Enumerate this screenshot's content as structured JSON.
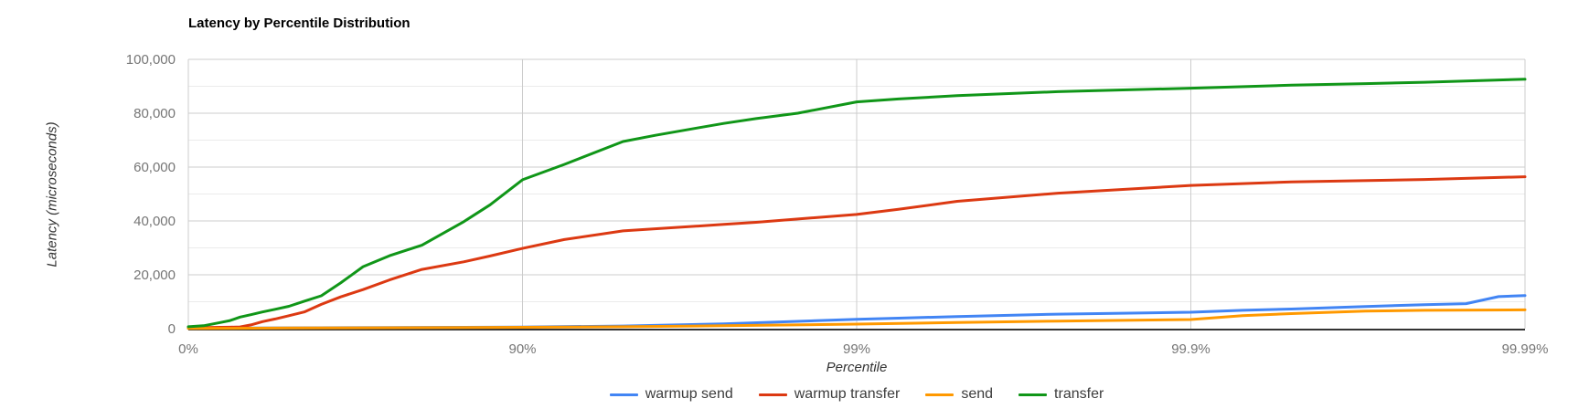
{
  "chart_data": {
    "type": "line",
    "title": "Latency by Percentile Distribution",
    "xlabel": "Percentile",
    "ylabel": "Latency (microseconds)",
    "x_scale": "logarithmic-percentile (equal spacing per decade of 1/(1-p))",
    "x_ticks": [
      {
        "decade": 0,
        "label": "0%"
      },
      {
        "decade": 1,
        "label": "90%"
      },
      {
        "decade": 2,
        "label": "99%"
      },
      {
        "decade": 3,
        "label": "99.9%"
      },
      {
        "decade": 4,
        "label": "99.99%"
      }
    ],
    "y_ticks": [
      {
        "value": 0,
        "label": "0"
      },
      {
        "value": 20000,
        "label": "20,000"
      },
      {
        "value": 40000,
        "label": "40,000"
      },
      {
        "value": 60000,
        "label": "60,000"
      },
      {
        "value": 80000,
        "label": "80,000"
      },
      {
        "value": 100000,
        "label": "100,000"
      }
    ],
    "ylim": [
      0,
      100000
    ],
    "grid": true,
    "minor_gridlines_every": 10000,
    "legend_position": "bottom",
    "colors": {
      "major_grid": "#cccccc",
      "minor_grid": "#ebebeb",
      "baseline": "#333333",
      "tick_text": "#757575"
    },
    "series": [
      {
        "name": "warmup send",
        "color": "#4285f4",
        "points": [
          [
            0,
            150
          ],
          [
            25,
            200
          ],
          [
            50,
            300
          ],
          [
            75,
            400
          ],
          [
            90,
            600
          ],
          [
            95,
            1000
          ],
          [
            97.5,
            1800
          ],
          [
            99,
            3500
          ],
          [
            99.25,
            3900
          ],
          [
            99.5,
            4500
          ],
          [
            99.75,
            5400
          ],
          [
            99.9,
            6100
          ],
          [
            99.93,
            6800
          ],
          [
            99.95,
            7300
          ],
          [
            99.97,
            8200
          ],
          [
            99.98,
            8900
          ],
          [
            99.985,
            9300
          ],
          [
            99.988,
            11900
          ],
          [
            99.99,
            12300
          ]
        ]
      },
      {
        "name": "warmup transfer",
        "color": "#dc3912",
        "points": [
          [
            0,
            400
          ],
          [
            10,
            450
          ],
          [
            20,
            500
          ],
          [
            25,
            550
          ],
          [
            30,
            650
          ],
          [
            35,
            1400
          ],
          [
            40,
            2600
          ],
          [
            45,
            3600
          ],
          [
            50,
            4800
          ],
          [
            55,
            6200
          ],
          [
            60,
            9000
          ],
          [
            65,
            11800
          ],
          [
            70,
            14500
          ],
          [
            75,
            18100
          ],
          [
            80,
            22000
          ],
          [
            85,
            24800
          ],
          [
            87.5,
            27000
          ],
          [
            90,
            29800
          ],
          [
            92.5,
            33100
          ],
          [
            95,
            36300
          ],
          [
            97.5,
            38700
          ],
          [
            98,
            39500
          ],
          [
            98.5,
            40700
          ],
          [
            99,
            42400
          ],
          [
            99.25,
            44300
          ],
          [
            99.5,
            47300
          ],
          [
            99.75,
            50300
          ],
          [
            99.9,
            53200
          ],
          [
            99.95,
            54500
          ],
          [
            99.98,
            55400
          ],
          [
            99.99,
            56400
          ]
        ]
      },
      {
        "name": "send",
        "color": "#ff9900",
        "points": [
          [
            0,
            100
          ],
          [
            25,
            150
          ],
          [
            50,
            250
          ],
          [
            75,
            350
          ],
          [
            90,
            500
          ],
          [
            95,
            700
          ],
          [
            97.5,
            1100
          ],
          [
            99,
            1700
          ],
          [
            99.5,
            2300
          ],
          [
            99.75,
            2800
          ],
          [
            99.9,
            3400
          ],
          [
            99.93,
            4850
          ],
          [
            99.95,
            5600
          ],
          [
            99.97,
            6500
          ],
          [
            99.98,
            6800
          ],
          [
            99.99,
            7000
          ]
        ]
      },
      {
        "name": "transfer",
        "color": "#109618",
        "points": [
          [
            0,
            700
          ],
          [
            10,
            1100
          ],
          [
            20,
            2300
          ],
          [
            25,
            3000
          ],
          [
            30,
            4300
          ],
          [
            35,
            5200
          ],
          [
            40,
            6200
          ],
          [
            45,
            7200
          ],
          [
            50,
            8300
          ],
          [
            55,
            10200
          ],
          [
            60,
            12200
          ],
          [
            65,
            17000
          ],
          [
            70,
            23000
          ],
          [
            75,
            27100
          ],
          [
            80,
            31000
          ],
          [
            85,
            39700
          ],
          [
            87.5,
            46000
          ],
          [
            90,
            55300
          ],
          [
            92.5,
            61000
          ],
          [
            95,
            69500
          ],
          [
            96,
            71800
          ],
          [
            97,
            74500
          ],
          [
            97.5,
            76200
          ],
          [
            98,
            78000
          ],
          [
            98.5,
            80000
          ],
          [
            99,
            84200
          ],
          [
            99.25,
            85300
          ],
          [
            99.5,
            86500
          ],
          [
            99.75,
            88000
          ],
          [
            99.9,
            89300
          ],
          [
            99.95,
            90400
          ],
          [
            99.97,
            91000
          ],
          [
            99.98,
            91500
          ],
          [
            99.99,
            92600
          ]
        ]
      }
    ]
  }
}
